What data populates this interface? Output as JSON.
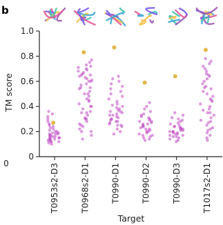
{
  "panel_label": "b",
  "stray_label": "0",
  "colors": {
    "model_points": "#c04bc2",
    "reference_points": "#e0b84a",
    "axis": "#222222"
  },
  "chart_data": {
    "type": "scatter",
    "title": "",
    "xlabel": "Target",
    "ylabel": "TM score",
    "ylim": [
      0,
      1.0
    ],
    "yticks": [
      0,
      0.2,
      0.4,
      0.6,
      0.8,
      1.0
    ],
    "yticklabels": [
      "0",
      "0.2",
      "0.4",
      "0.6",
      "0.8",
      "1.0"
    ],
    "grid": false,
    "legend": "none",
    "categories": [
      "T0953s2-D3",
      "T0968s2-D1",
      "T0990-D1",
      "T0990-D2",
      "T0990-D3",
      "T1017s2-D1"
    ],
    "structure_thumbnails": [
      "protein-structure-icon",
      "protein-structure-icon",
      "protein-structure-icon",
      "protein-structure-icon",
      "protein-structure-icon",
      "protein-structure-icon"
    ],
    "reference_points": [
      {
        "category": "T0953s2-D3",
        "y": 0.27
      },
      {
        "category": "T0968s2-D1",
        "y": 0.83
      },
      {
        "category": "T0990-D1",
        "y": 0.87
      },
      {
        "category": "T0990-D2",
        "y": 0.59
      },
      {
        "category": "T0990-D3",
        "y": 0.64
      },
      {
        "category": "T1017s2-D1",
        "y": 0.85
      }
    ],
    "series": [
      {
        "category": "T0953s2-D3",
        "values": [
          0.1,
          0.11,
          0.12,
          0.12,
          0.13,
          0.13,
          0.14,
          0.14,
          0.15,
          0.15,
          0.15,
          0.16,
          0.16,
          0.17,
          0.17,
          0.18,
          0.18,
          0.19,
          0.19,
          0.2,
          0.2,
          0.21,
          0.22,
          0.23,
          0.24,
          0.25,
          0.26,
          0.28,
          0.3,
          0.32,
          0.34,
          0.36,
          0.12,
          0.14,
          0.16,
          0.18
        ]
      },
      {
        "category": "T0968s2-D1",
        "values": [
          0.14,
          0.17,
          0.2,
          0.22,
          0.24,
          0.26,
          0.28,
          0.3,
          0.31,
          0.33,
          0.35,
          0.36,
          0.38,
          0.4,
          0.42,
          0.44,
          0.46,
          0.48,
          0.5,
          0.52,
          0.54,
          0.55,
          0.57,
          0.58,
          0.6,
          0.61,
          0.62,
          0.63,
          0.64,
          0.65,
          0.66,
          0.67,
          0.68,
          0.69,
          0.7,
          0.71,
          0.72,
          0.73,
          0.75,
          0.77,
          0.65,
          0.6,
          0.55,
          0.5,
          0.45,
          0.4,
          0.35,
          0.3,
          0.25,
          0.2
        ]
      },
      {
        "category": "T0990-D1",
        "values": [
          0.18,
          0.2,
          0.22,
          0.24,
          0.25,
          0.26,
          0.27,
          0.28,
          0.29,
          0.3,
          0.31,
          0.32,
          0.33,
          0.34,
          0.35,
          0.36,
          0.37,
          0.38,
          0.39,
          0.4,
          0.42,
          0.44,
          0.46,
          0.48,
          0.5,
          0.52,
          0.54,
          0.56,
          0.58,
          0.6,
          0.62,
          0.64,
          0.3,
          0.33,
          0.28,
          0.25,
          0.36,
          0.41
        ]
      },
      {
        "category": "T0990-D2",
        "values": [
          0.13,
          0.14,
          0.15,
          0.16,
          0.17,
          0.18,
          0.19,
          0.2,
          0.21,
          0.22,
          0.23,
          0.24,
          0.25,
          0.26,
          0.27,
          0.28,
          0.29,
          0.3,
          0.31,
          0.32,
          0.33,
          0.34,
          0.36,
          0.38,
          0.4,
          0.43,
          0.2,
          0.22,
          0.24,
          0.26,
          0.17,
          0.28
        ]
      },
      {
        "category": "T0990-D3",
        "values": [
          0.12,
          0.13,
          0.14,
          0.15,
          0.16,
          0.17,
          0.17,
          0.18,
          0.18,
          0.19,
          0.19,
          0.2,
          0.2,
          0.21,
          0.21,
          0.22,
          0.22,
          0.23,
          0.23,
          0.24,
          0.25,
          0.26,
          0.27,
          0.28,
          0.29,
          0.3,
          0.31,
          0.33,
          0.35,
          0.16,
          0.2,
          0.24
        ]
      },
      {
        "category": "T1017s2-D1",
        "values": [
          0.13,
          0.15,
          0.17,
          0.19,
          0.21,
          0.23,
          0.25,
          0.27,
          0.29,
          0.31,
          0.33,
          0.35,
          0.37,
          0.38,
          0.4,
          0.42,
          0.44,
          0.46,
          0.48,
          0.5,
          0.52,
          0.54,
          0.56,
          0.58,
          0.6,
          0.62,
          0.64,
          0.66,
          0.68,
          0.7,
          0.72,
          0.74,
          0.76,
          0.78,
          0.45,
          0.35,
          0.28,
          0.55,
          0.65,
          0.22
        ]
      }
    ]
  }
}
